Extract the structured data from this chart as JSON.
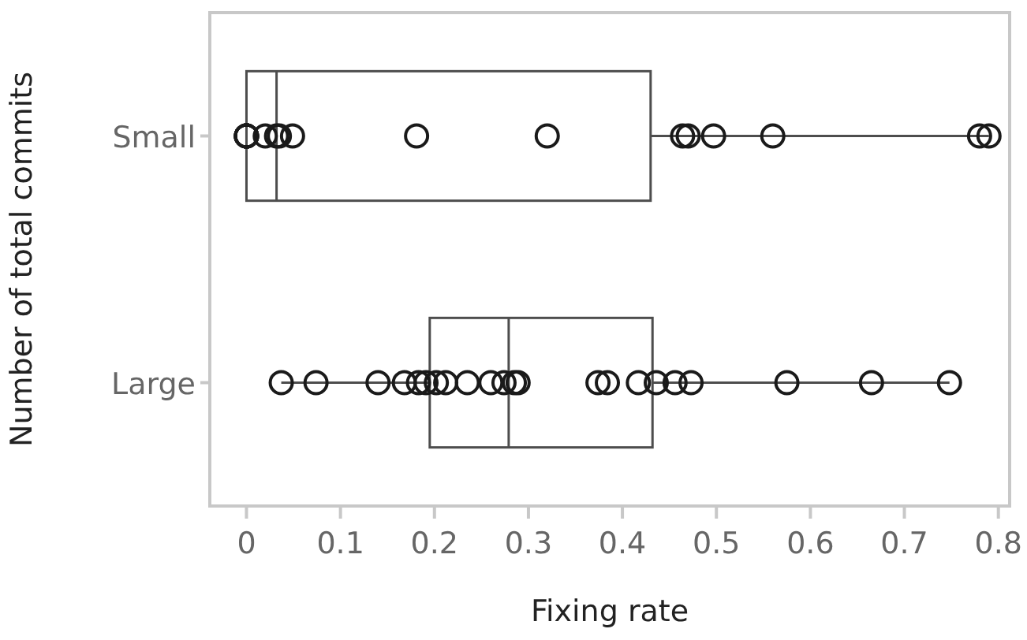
{
  "chart_data": {
    "type": "box",
    "orientation": "horizontal",
    "xlabel": "Fixing rate",
    "ylabel": "Number of total commits",
    "categories": [
      "Small",
      "Large"
    ],
    "boxes": [
      {
        "low": 0,
        "q1": 0,
        "median": 0.032,
        "q3": 0.43,
        "high": 0.79
      },
      {
        "low": 0.037,
        "q1": 0.195,
        "median": 0.279,
        "q3": 0.432,
        "high": 0.748
      }
    ],
    "xlim": [
      -0.039,
      0.812
    ],
    "xticks": [
      0,
      0.1,
      0.2,
      0.3,
      0.4,
      0.5,
      0.6,
      0.7,
      0.8
    ],
    "grid": false,
    "marker": "circle",
    "series": [
      {
        "type": "scatter",
        "color": "#1a1a1a",
        "x": [
          "Small",
          "Small",
          "Small",
          "Small",
          "Small",
          "Small",
          "Small",
          "Small",
          "Small",
          "Small",
          "Small",
          "Small",
          "Small",
          "Small",
          "Small",
          "Small",
          "Small",
          "Small"
        ],
        "values": [
          0,
          0,
          0,
          0,
          0,
          0,
          0.02,
          0.032,
          0.035,
          0.049,
          0.181,
          0.32,
          0.464,
          0.47,
          0.497,
          0.56,
          0.78,
          0.79
        ]
      },
      {
        "type": "scatter",
        "color": "#1a1a1a",
        "x": [
          "Large",
          "Large",
          "Large",
          "Large",
          "Large",
          "Large",
          "Large",
          "Large",
          "Large",
          "Large",
          "Large",
          "Large",
          "Large",
          "Large",
          "Large",
          "Large",
          "Large",
          "Large",
          "Large",
          "Large",
          "Large",
          "Large"
        ],
        "values": [
          0.037,
          0.074,
          0.14,
          0.168,
          0.183,
          0.191,
          0.202,
          0.212,
          0.235,
          0.26,
          0.274,
          0.285,
          0.289,
          0.374,
          0.384,
          0.417,
          0.436,
          0.456,
          0.473,
          0.575,
          0.665,
          0.748
        ]
      }
    ]
  }
}
